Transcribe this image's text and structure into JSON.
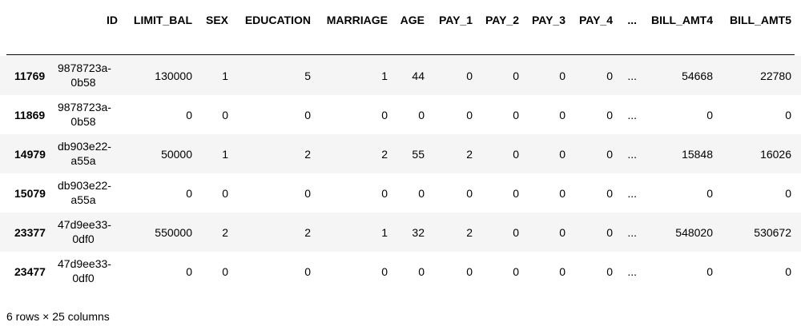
{
  "table": {
    "columns": [
      "ID",
      "LIMIT_BAL",
      "SEX",
      "EDUCATION",
      "MARRIAGE",
      "AGE",
      "PAY_1",
      "PAY_2",
      "PAY_3",
      "PAY_4",
      "...",
      "BILL_AMT4",
      "BILL_AMT5"
    ],
    "rows": [
      [
        "11769",
        "9878723a-0b58",
        130000,
        1,
        5,
        1,
        44,
        0,
        0,
        0,
        0,
        "...",
        54668,
        22780
      ],
      [
        "11869",
        "9878723a-0b58",
        0,
        0,
        0,
        0,
        0,
        0,
        0,
        0,
        0,
        "...",
        0,
        0
      ],
      [
        "14979",
        "db903e22-a55a",
        50000,
        1,
        2,
        2,
        55,
        2,
        0,
        0,
        0,
        "...",
        15848,
        16026
      ],
      [
        "15079",
        "db903e22-a55a",
        0,
        0,
        0,
        0,
        0,
        0,
        0,
        0,
        0,
        "...",
        0,
        0
      ],
      [
        "23377",
        "47d9ee33-0df0",
        550000,
        2,
        2,
        1,
        32,
        2,
        0,
        0,
        0,
        "...",
        548020,
        530672
      ],
      [
        "23477",
        "47d9ee33-0df0",
        0,
        0,
        0,
        0,
        0,
        0,
        0,
        0,
        0,
        "...",
        0,
        0
      ]
    ]
  },
  "footer": "6 rows × 25 columns"
}
